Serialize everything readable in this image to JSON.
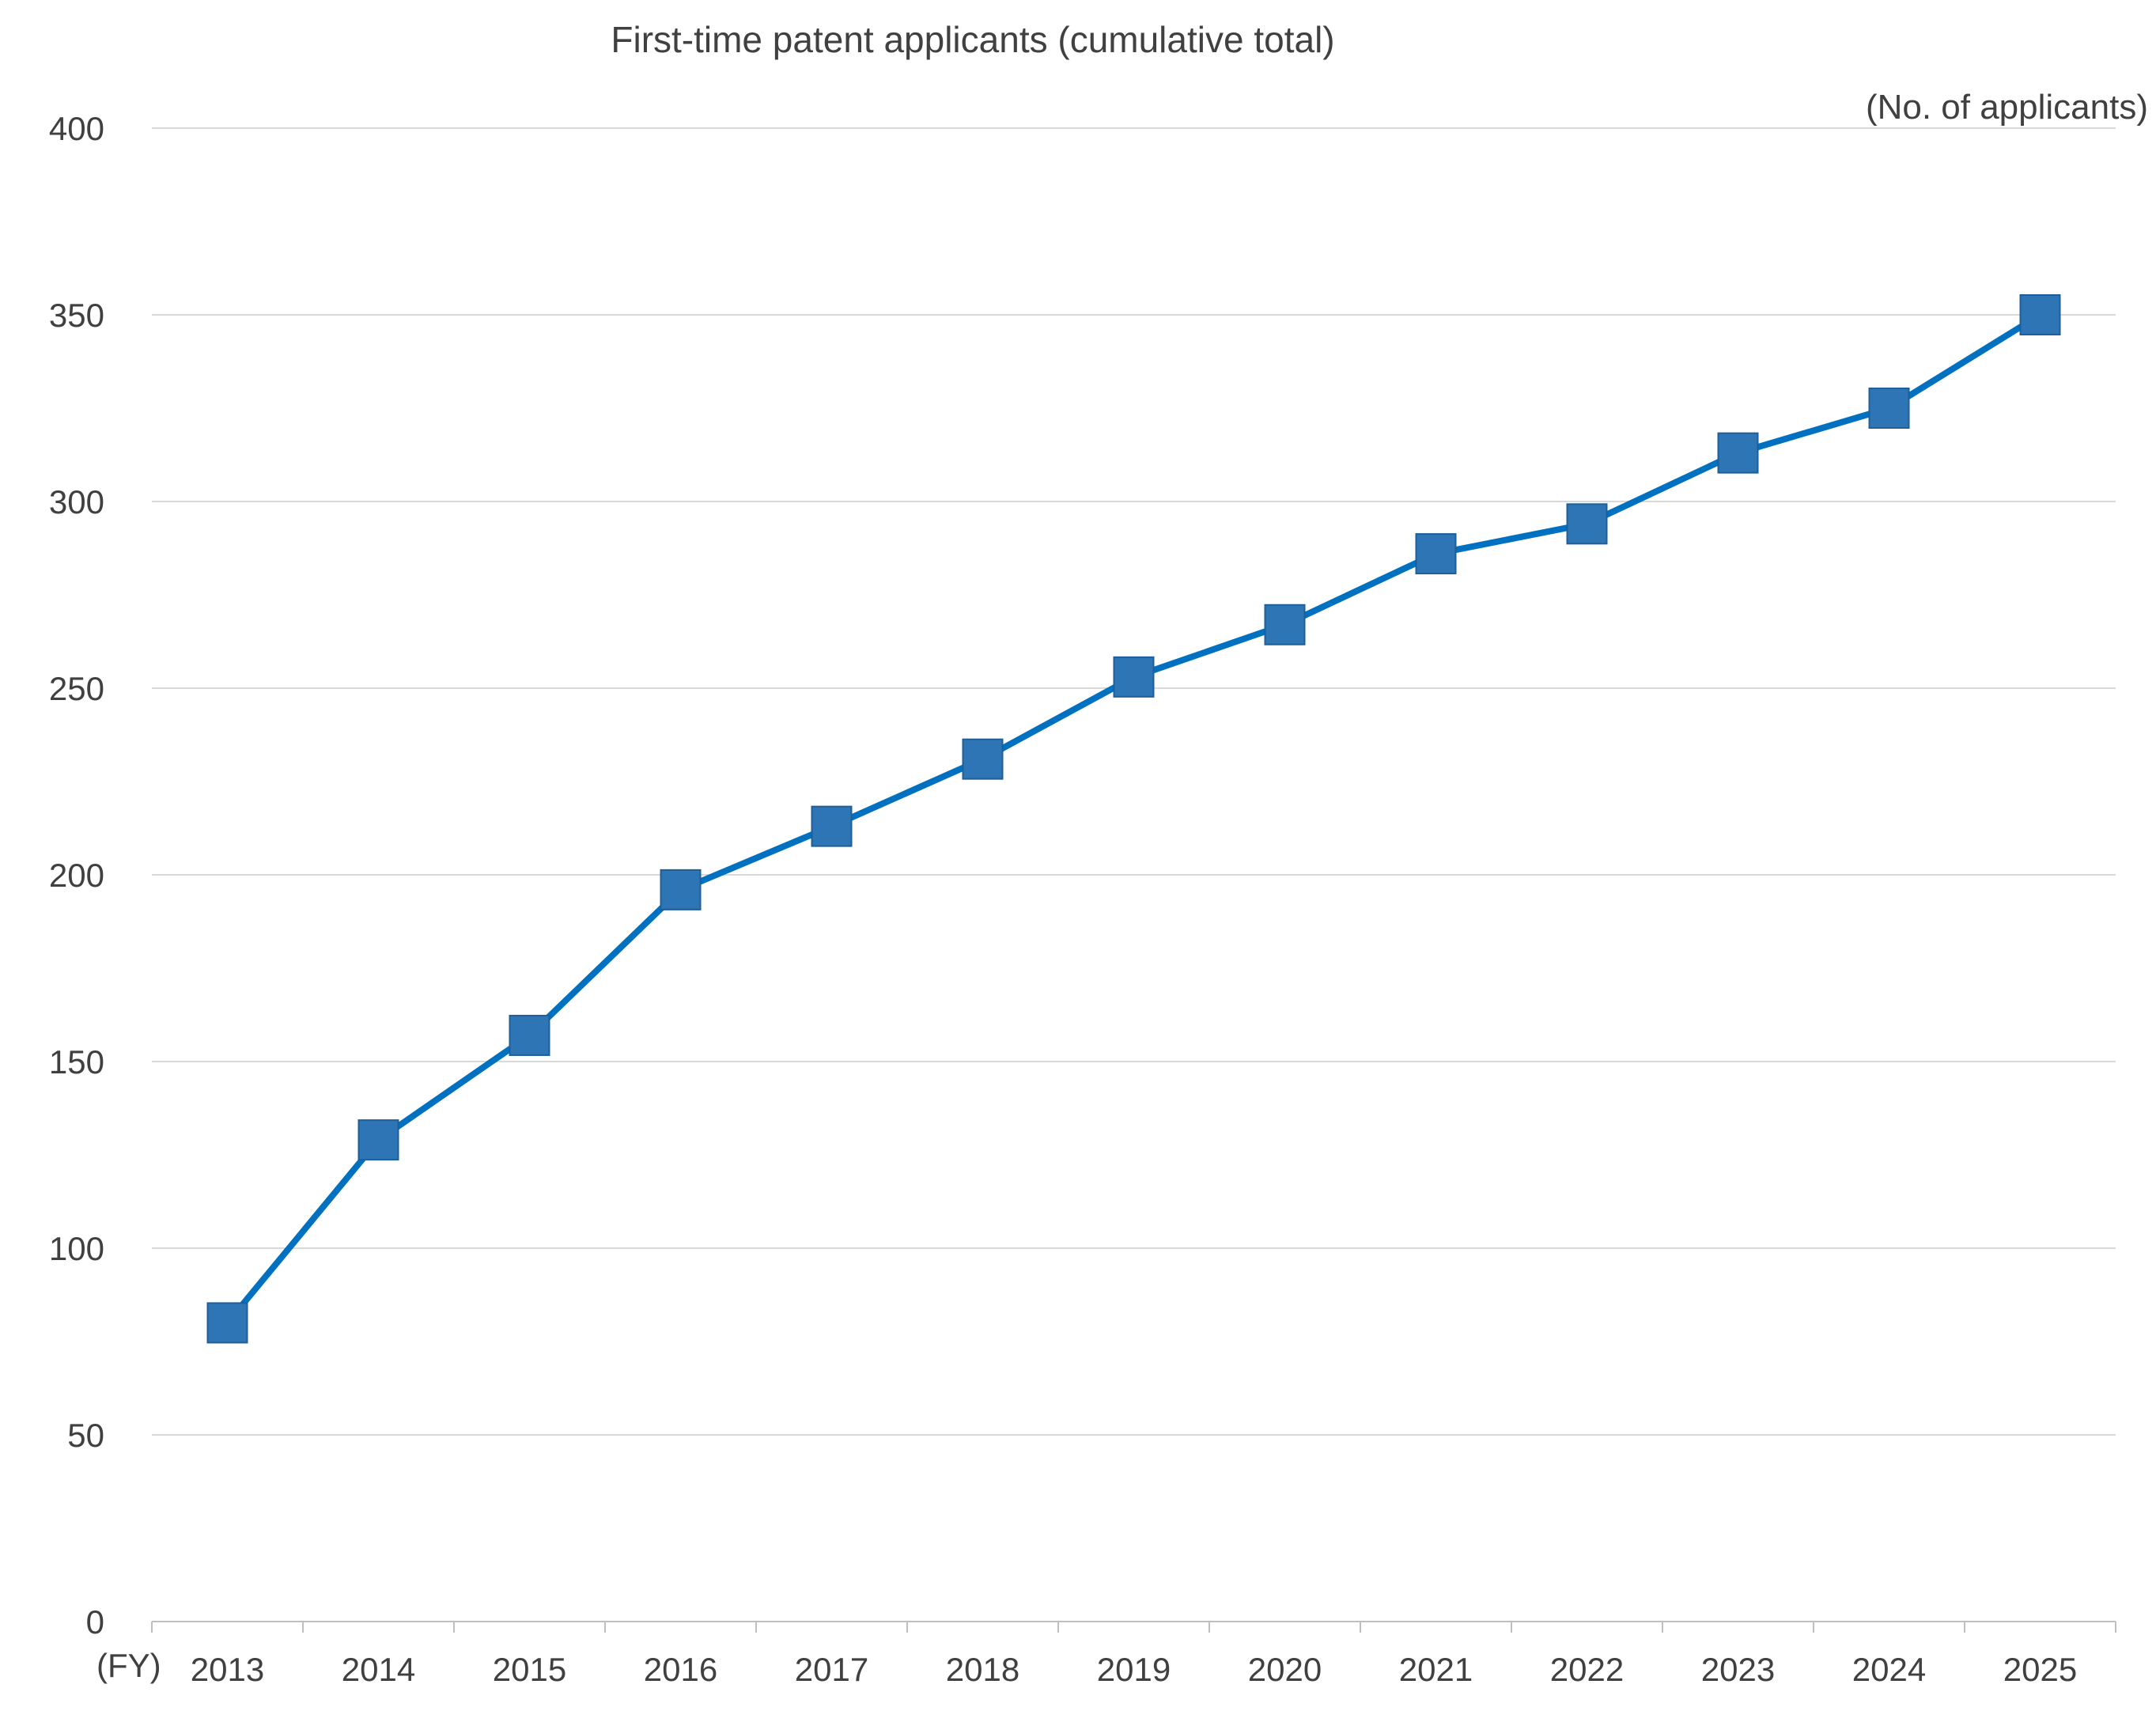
{
  "chart_data": {
    "type": "line",
    "title": "First-time patent applicants (cumulative total)",
    "ylabel": "(No. of applicants)",
    "xlabel": "(FY)",
    "ylim": [
      0,
      400
    ],
    "yticks": [
      0,
      50,
      100,
      150,
      200,
      250,
      300,
      350,
      400
    ],
    "grid": true,
    "categories": [
      "2013",
      "2014",
      "2015",
      "2016",
      "2017",
      "2018",
      "2019",
      "2020",
      "2021",
      "2022",
      "2023",
      "2024",
      "2025"
    ],
    "series": [
      {
        "values": [
          80,
          129,
          157,
          196,
          213,
          231,
          253,
          267,
          286,
          294,
          313,
          325,
          350
        ],
        "color": "#0070C0",
        "marker": "square",
        "marker_color": "#2E75B6"
      }
    ]
  }
}
